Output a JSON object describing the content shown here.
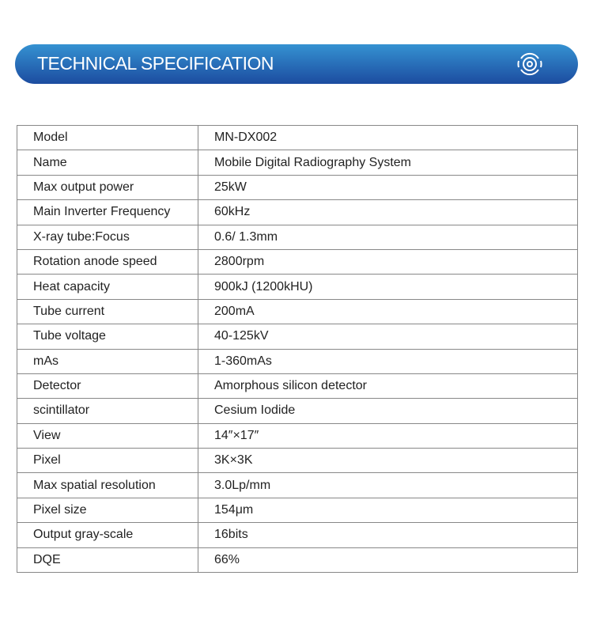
{
  "header": {
    "title": "TECHNICAL SPECIFICATION",
    "icon": "target-rings-icon"
  },
  "specs": [
    {
      "label": "Model",
      "value": "MN-DX002"
    },
    {
      "label": "Name",
      "value": "Mobile Digital Radiography System"
    },
    {
      "label": "Max output power",
      "value": "25kW"
    },
    {
      "label": "Main Inverter Frequency",
      "value": "60kHz"
    },
    {
      "label": "X-ray tube:Focus",
      "value": "0.6/ 1.3mm"
    },
    {
      "label": "Rotation anode speed",
      "value": "2800rpm"
    },
    {
      "label": "Heat capacity",
      "value": "900kJ (1200kHU)"
    },
    {
      "label": "Tube current",
      "value": "200mA"
    },
    {
      "label": "Tube voltage",
      "value": "40-125kV"
    },
    {
      "label": "mAs",
      "value": "1-360mAs"
    },
    {
      "label": "Detector",
      "value": "Amorphous silicon detector"
    },
    {
      "label": "scintillator",
      "value": "Cesium Iodide"
    },
    {
      "label": "View",
      "value": "14″×17″"
    },
    {
      "label": "Pixel",
      "value": "3K×3K"
    },
    {
      "label": "Max spatial resolution",
      "value": "3.0Lp/mm"
    },
    {
      "label": "Pixel size",
      "value": "154μm"
    },
    {
      "label": "Output gray-scale",
      "value": "16bits"
    },
    {
      "label": "DQE",
      "value": "66%"
    }
  ]
}
